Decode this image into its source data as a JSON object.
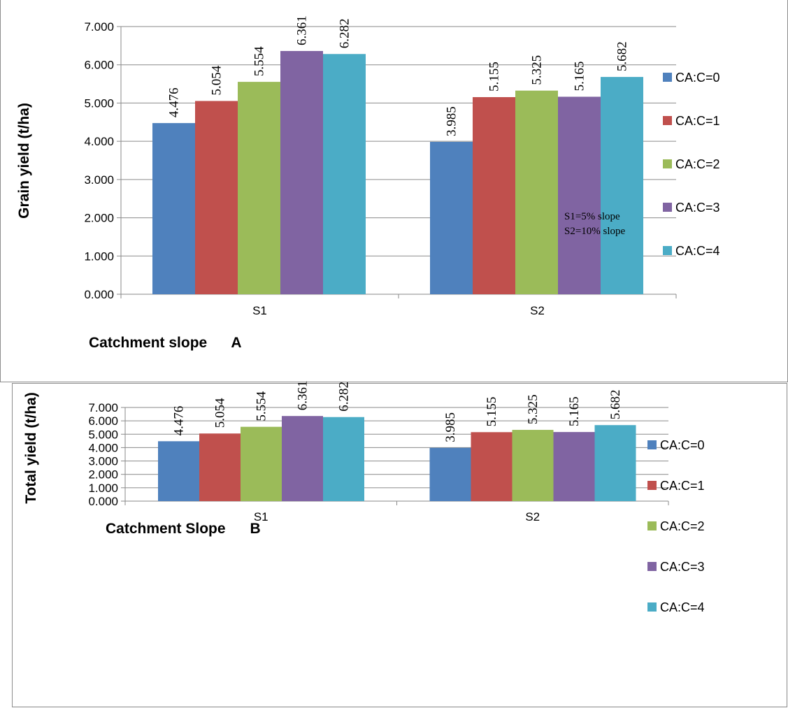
{
  "chart_data": [
    {
      "id": "A",
      "type": "bar",
      "ylabel": "Grain  yield (t/ha)",
      "xlabel": "Catchment slope      A",
      "categories": [
        "S1",
        "S2"
      ],
      "y_ticks": [
        "0.000",
        "1.000",
        "2.000",
        "3.000",
        "4.000",
        "5.000",
        "6.000",
        "7.000"
      ],
      "ylim": [
        0,
        7
      ],
      "grid": true,
      "legend_position": "right",
      "annotation": [
        "S1=5% slope",
        "S2=10% slope"
      ],
      "series": [
        {
          "name": "CA:C=0",
          "color": "#4F81BD",
          "values": [
            4.476,
            3.985
          ],
          "labels": [
            "4.476",
            "3.985"
          ]
        },
        {
          "name": "CA:C=1",
          "color": "#C0504D",
          "values": [
            5.054,
            5.155
          ],
          "labels": [
            "5.054",
            "5.155"
          ]
        },
        {
          "name": "CA:C=2",
          "color": "#9BBB59",
          "values": [
            5.554,
            5.325
          ],
          "labels": [
            "5.554",
            "5.325"
          ]
        },
        {
          "name": "CA:C=3",
          "color": "#8064A2",
          "values": [
            6.361,
            5.165
          ],
          "labels": [
            "6.361",
            "5.165"
          ]
        },
        {
          "name": "CA:C=4",
          "color": "#4BACC6",
          "values": [
            6.282,
            5.682
          ],
          "labels": [
            "6.282",
            "5.682"
          ]
        }
      ]
    },
    {
      "id": "B",
      "type": "bar",
      "ylabel": "Total  yield (t/ha)",
      "xlabel": "Catchment Slope      B",
      "categories": [
        "S1",
        "S2"
      ],
      "y_ticks": [
        "0.000",
        "1.000",
        "2.000",
        "3.000",
        "4.000",
        "5.000",
        "6.000",
        "7.000"
      ],
      "ylim": [
        0,
        7
      ],
      "grid": true,
      "legend_position": "right",
      "series": [
        {
          "name": "CA:C=0",
          "color": "#4F81BD",
          "values": [
            4.476,
            3.985
          ],
          "labels": [
            "4.476",
            "3.985"
          ]
        },
        {
          "name": "CA:C=1",
          "color": "#C0504D",
          "values": [
            5.054,
            5.155
          ],
          "labels": [
            "5.054",
            "5.155"
          ]
        },
        {
          "name": "CA:C=2",
          "color": "#9BBB59",
          "values": [
            5.554,
            5.325
          ],
          "labels": [
            "5.554",
            "5.325"
          ]
        },
        {
          "name": "CA:C=3",
          "color": "#8064A2",
          "values": [
            6.361,
            5.165
          ],
          "labels": [
            "6.361",
            "5.165"
          ]
        },
        {
          "name": "CA:C=4",
          "color": "#4BACC6",
          "values": [
            6.282,
            5.682
          ],
          "labels": [
            "6.282",
            "5.682"
          ]
        }
      ]
    }
  ]
}
